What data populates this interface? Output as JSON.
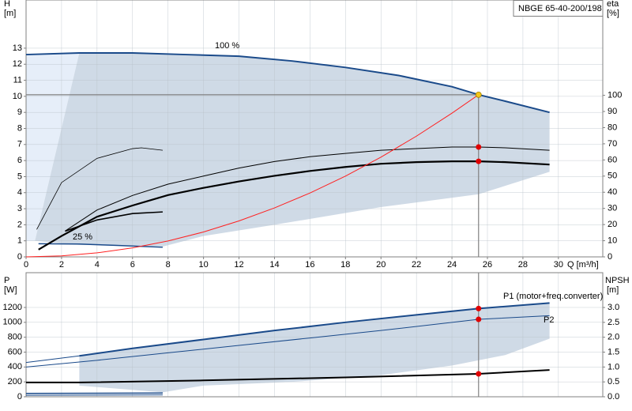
{
  "chart_data": [
    {
      "type": "line",
      "title": "NBGE 65-40-200/198",
      "xlabel": "Q [m³/h]",
      "ylabel": "H",
      "yunit": "[m]",
      "y2label": "eta",
      "y2unit": "[%]",
      "xlim": [
        0,
        32.5
      ],
      "xticks": [
        0,
        2,
        4,
        6,
        8,
        10,
        12,
        14,
        16,
        18,
        20,
        22,
        24,
        26,
        28,
        30
      ],
      "ylim": [
        0,
        16
      ],
      "yticks": [
        0,
        1,
        2,
        3,
        4,
        5,
        6,
        7,
        8,
        9,
        10,
        11,
        12,
        13
      ],
      "y2lim": [
        0,
        159
      ],
      "y2ticks": [
        0,
        10,
        20,
        30,
        40,
        50,
        60,
        70,
        80,
        90,
        100
      ],
      "grid": true,
      "areas": [
        {
          "color": "#e6eef9",
          "x": [
            0,
            3,
            0.5,
            0
          ],
          "values": [
            12.6,
            12.7,
            1.0,
            1.0
          ]
        },
        {
          "color": "#cfdae6",
          "x": [
            3,
            6,
            9,
            12,
            15,
            18,
            21,
            24,
            25.5,
            27,
            29.5,
            29.5,
            25.5,
            20,
            14,
            10,
            7.7,
            3,
            0.5
          ],
          "values": [
            12.7,
            12.7,
            12.6,
            12.5,
            12.2,
            11.8,
            11.3,
            10.6,
            10.1,
            9.7,
            9.0,
            5.3,
            3.9,
            3.1,
            2.0,
            1.3,
            0.64,
            0.75,
            1.0
          ]
        }
      ],
      "series": [
        {
          "name": "100 %",
          "color": "#1a4a8a",
          "width": 2,
          "x": [
            0,
            3,
            6,
            9,
            12,
            15,
            18,
            21,
            24,
            25.5,
            27,
            29.5
          ],
          "values": [
            12.6,
            12.7,
            12.7,
            12.6,
            12.5,
            12.2,
            11.8,
            11.3,
            10.6,
            10.1,
            9.7,
            9.0
          ]
        },
        {
          "name": "25 %",
          "color": "#1a4a8a",
          "width": 1.5,
          "x": [
            0.7,
            3,
            5,
            7.7
          ],
          "values": [
            0.82,
            0.8,
            0.72,
            0.6
          ]
        },
        {
          "color": "#000000",
          "width": 2.2,
          "x": [
            0.7,
            2,
            4,
            6,
            8,
            10,
            12,
            14,
            16,
            18,
            20,
            22,
            24,
            25.5,
            27,
            29.5
          ],
          "values": [
            0.45,
            1.3,
            2.5,
            3.2,
            3.85,
            4.3,
            4.7,
            5.05,
            5.35,
            5.6,
            5.8,
            5.9,
            5.95,
            5.95,
            5.9,
            5.75
          ]
        },
        {
          "color": "#000000",
          "width": 1.6,
          "x": [
            2.2,
            4,
            6,
            7.7
          ],
          "values": [
            1.6,
            2.3,
            2.7,
            2.8
          ]
        },
        {
          "color": "#000000",
          "width": 1,
          "axis": "y2",
          "x": [
            2.2,
            4,
            6,
            8,
            10,
            12,
            14,
            16,
            18,
            20,
            22,
            24,
            25.5,
            27,
            29.5
          ],
          "values": [
            16,
            29,
            38,
            45,
            50,
            55,
            59,
            62,
            64,
            66,
            67,
            68,
            68,
            67.5,
            66
          ]
        },
        {
          "color": "#000000",
          "width": 0.8,
          "axis": "y2",
          "x": [
            0.6,
            2,
            4,
            6,
            6.5,
            7.7
          ],
          "values": [
            17,
            46,
            61,
            67,
            67.5,
            66
          ]
        },
        {
          "color": "#ff2020",
          "width": 1,
          "x": [
            0,
            2,
            4,
            6,
            8,
            10,
            12,
            14,
            16,
            18,
            20,
            22,
            24,
            25.5
          ],
          "values": [
            0,
            0.06,
            0.25,
            0.56,
            0.99,
            1.55,
            2.24,
            3.05,
            3.98,
            5.03,
            6.21,
            7.52,
            8.95,
            10.1
          ]
        }
      ],
      "points": [
        {
          "x": 25.5,
          "y": 10.1,
          "color": "#f5c518"
        },
        {
          "x": 25.5,
          "y": 5.95,
          "color": "#e00000"
        },
        {
          "x": 25.5,
          "y": 68,
          "axis": "y2",
          "color": "#e00000"
        }
      ]
    },
    {
      "type": "line",
      "ylabel": "P",
      "yunit": "[W]",
      "y2label": "NPSH",
      "y2unit": "[m]",
      "xlim": [
        0,
        32.5
      ],
      "ylim": [
        0,
        1667
      ],
      "yticks": [
        0,
        200,
        400,
        600,
        800,
        1000,
        1200
      ],
      "y2lim": [
        0,
        4.17
      ],
      "y2ticks": [
        {
          "value": 0,
          "label": "0.0"
        },
        0.5,
        {
          "value": 1,
          "label": "1.0"
        },
        1.5,
        {
          "value": 2,
          "label": "2.0"
        },
        2.5,
        {
          "value": 3,
          "label": "3.0"
        }
      ],
      "grid": true,
      "areas": [
        {
          "color": "#cfdae6",
          "x": [
            3,
            6,
            10,
            14,
            18,
            22,
            25.5,
            29.5,
            29.5,
            27,
            24,
            20,
            15,
            10,
            7.7,
            3
          ],
          "values": [
            550,
            650,
            770,
            890,
            1000,
            1100,
            1185,
            1260,
            780,
            560,
            420,
            290,
            200,
            150,
            60,
            150
          ]
        }
      ],
      "series": [
        {
          "name": "P1 (motor+freq.converter)",
          "color": "#1a4a8a",
          "width": 2,
          "x": [
            3,
            6,
            10,
            14,
            18,
            22,
            25.5,
            29.5
          ],
          "values": [
            550,
            650,
            770,
            890,
            1000,
            1100,
            1185,
            1260
          ]
        },
        {
          "name": "P2",
          "color": "#1a4a8a",
          "width": 1,
          "x": [
            0,
            4,
            8,
            12,
            16,
            20,
            25.5,
            29.5
          ],
          "values": [
            400,
            490,
            590,
            690,
            790,
            890,
            1040,
            1090
          ]
        },
        {
          "color": "#1a4a8a",
          "width": 1,
          "x": [
            0,
            3
          ],
          "values": [
            460,
            550
          ]
        },
        {
          "color": "#1a4a8a",
          "width": 1.5,
          "x": [
            0,
            7.7
          ],
          "values": [
            45,
            50
          ]
        },
        {
          "color": "#1a4a8a",
          "width": 1,
          "x": [
            0,
            7.7
          ],
          "values": [
            20,
            25
          ]
        },
        {
          "color": "#000000",
          "width": 2,
          "axis": "y2",
          "x": [
            0,
            3,
            10,
            18,
            25.5,
            29.5
          ],
          "values": [
            0.48,
            0.48,
            0.55,
            0.65,
            0.77,
            0.9
          ]
        }
      ],
      "points": [
        {
          "x": 25.5,
          "y": 1185,
          "color": "#e00000"
        },
        {
          "x": 25.5,
          "y": 1040,
          "color": "#e00000"
        },
        {
          "x": 25.5,
          "y": 0.77,
          "axis": "y2",
          "color": "#e00000"
        }
      ]
    }
  ]
}
